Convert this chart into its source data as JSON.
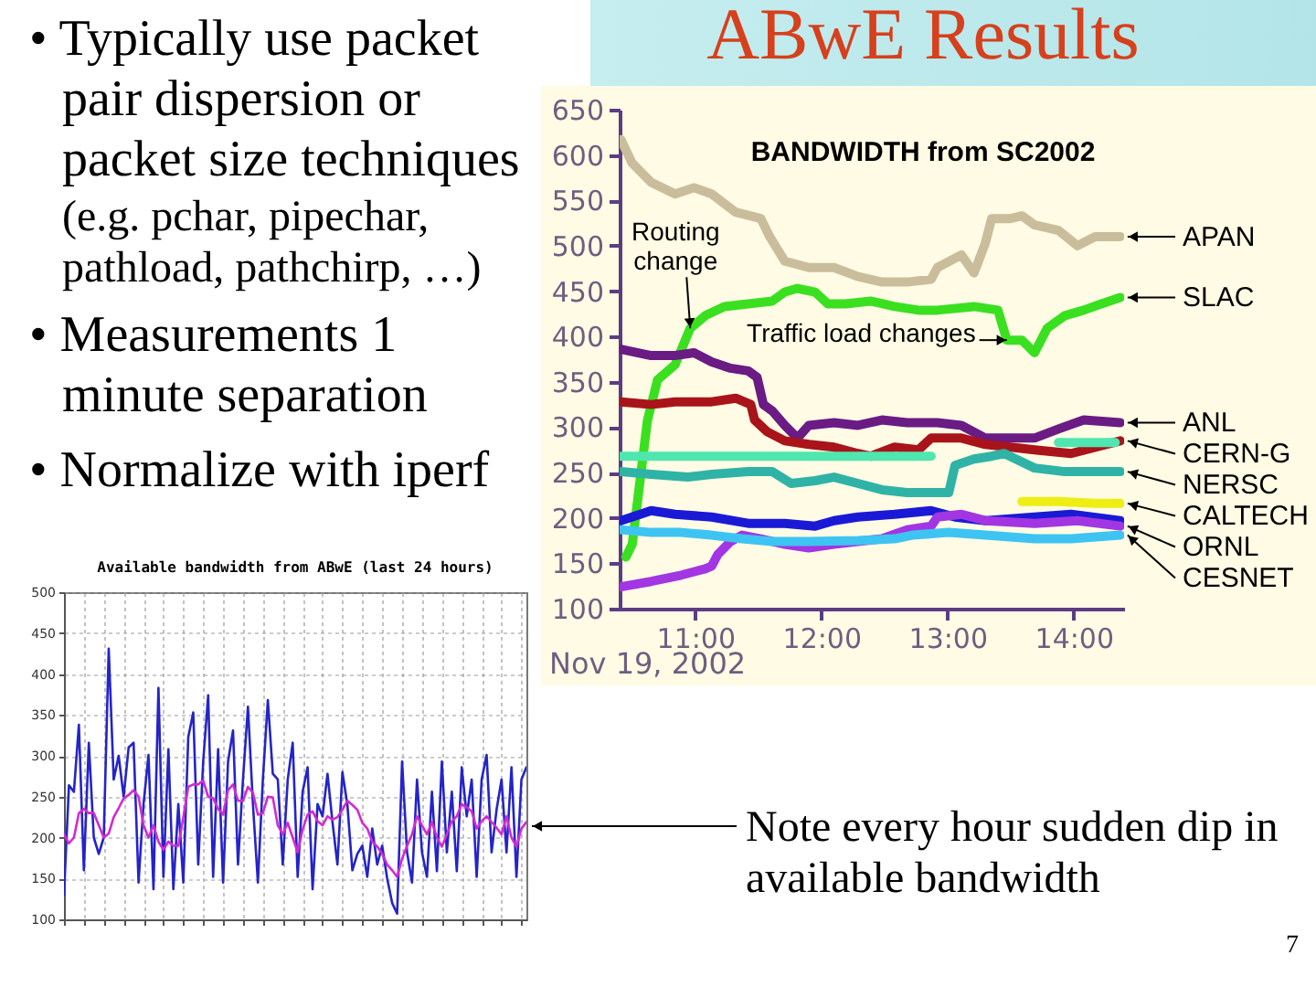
{
  "chart_data": [
    {
      "type": "other",
      "annotations": [
        "• Typically use packet pair dispersion or packet size techniques",
        "(e.g. pchar, pipechar, pathload, pathchirp, …)",
        "• Measurements 1 minute separation",
        "• Normalize with iperf"
      ]
    },
    {
      "type": "line",
      "title": "ABwE Results",
      "subtitle": "BANDWIDTH from SC2002",
      "xlabel": "Nov 19, 2002",
      "xlim": [
        10.4,
        14.4
      ],
      "xticks": [
        {
          "value": 11,
          "label": "11:00"
        },
        {
          "value": 12,
          "label": "12:00"
        },
        {
          "value": 13,
          "label": "13:00"
        },
        {
          "value": 14,
          "label": "14:00"
        }
      ],
      "ylim": [
        100,
        650
      ],
      "yticks": [
        100,
        150,
        200,
        250,
        300,
        350,
        400,
        450,
        500,
        550,
        600,
        650
      ],
      "annotations": [
        {
          "text": "Routing change",
          "x": 10.96,
          "y": 409
        },
        {
          "text": "Traffic load changes",
          "x": 13.47,
          "y": 396
        }
      ],
      "series": [
        {
          "name": "APAN",
          "color": "#c9bd9c",
          "x": [
            10.41,
            10.5,
            10.65,
            10.84,
            10.99,
            11.13,
            11.32,
            11.52,
            11.59,
            11.71,
            11.9,
            12.1,
            12.29,
            12.48,
            12.68,
            12.87,
            12.92,
            13.11,
            13.21,
            13.3,
            13.35,
            13.5,
            13.59,
            13.69,
            13.88,
            14.03,
            14.17,
            14.37
          ],
          "values": [
            617,
            591,
            570,
            557,
            564,
            557,
            537,
            530,
            510,
            483,
            476,
            476,
            466,
            460,
            460,
            463,
            476,
            490,
            470,
            503,
            530,
            530,
            533,
            523,
            517,
            500,
            510,
            510
          ]
        },
        {
          "name": "SLAC",
          "color": "#3ae020",
          "x": [
            10.45,
            10.5,
            10.62,
            10.7,
            10.84,
            10.96,
            11.08,
            11.23,
            11.42,
            11.61,
            11.71,
            11.81,
            11.95,
            12.05,
            12.19,
            12.39,
            12.58,
            12.77,
            12.92,
            13.21,
            13.4,
            13.47,
            13.59,
            13.69,
            13.79,
            13.93,
            14.08,
            14.22,
            14.37
          ],
          "values": [
            157,
            171,
            307,
            352,
            369,
            409,
            423,
            433,
            436,
            439,
            449,
            453,
            449,
            436,
            436,
            439,
            433,
            429,
            429,
            433,
            429,
            396,
            396,
            382,
            409,
            423,
            429,
            436,
            443
          ]
        },
        {
          "name": "ANL",
          "color": "#6a1b84",
          "x": [
            10.41,
            10.65,
            10.84,
            10.99,
            11.13,
            11.28,
            11.42,
            11.49,
            11.54,
            11.61,
            11.71,
            11.81,
            11.9,
            12.1,
            12.29,
            12.48,
            12.68,
            12.92,
            13.11,
            13.3,
            13.5,
            13.69,
            13.88,
            14.08,
            14.37
          ],
          "values": [
            386,
            379,
            379,
            382,
            372,
            365,
            362,
            355,
            325,
            318,
            302,
            288,
            302,
            305,
            302,
            308,
            305,
            305,
            302,
            288,
            288,
            288,
            298,
            308,
            305
          ]
        },
        {
          "name": "CERN-G",
          "color": "#a8141a",
          "x": [
            10.41,
            10.65,
            10.84,
            11.13,
            11.32,
            11.44,
            11.47,
            11.57,
            11.71,
            11.9,
            12.1,
            12.29,
            12.39,
            12.58,
            12.77,
            12.87,
            13.11,
            13.3,
            13.5,
            13.69,
            13.98,
            14.37
          ],
          "values": [
            328,
            325,
            328,
            328,
            332,
            325,
            308,
            295,
            285,
            281,
            278,
            271,
            268,
            278,
            275,
            288,
            288,
            281,
            278,
            275,
            271,
            285
          ]
        },
        {
          "color": "#4fe6b0",
          "x": [
            10.41,
            11.5,
            12.5,
            12.87
          ],
          "values": [
            268,
            268,
            268,
            268
          ]
        },
        {
          "color": "#4fe6b0",
          "x": [
            13.88,
            14.33
          ],
          "values": [
            283,
            283
          ]
        },
        {
          "name": "NERSC",
          "color": "#2fb3a6",
          "x": [
            10.41,
            10.65,
            10.94,
            11.13,
            11.42,
            11.61,
            11.76,
            11.95,
            12.1,
            12.29,
            12.48,
            12.68,
            12.92,
            13.01,
            13.06,
            13.21,
            13.35,
            13.45,
            13.69,
            13.93,
            14.37
          ],
          "values": [
            251,
            248,
            245,
            248,
            251,
            251,
            238,
            241,
            245,
            238,
            231,
            228,
            228,
            228,
            258,
            265,
            268,
            271,
            255,
            251,
            251
          ]
        },
        {
          "name": "CALTECH",
          "color": "#eeee14",
          "x": [
            13.59,
            13.88,
            14.17,
            14.37
          ],
          "values": [
            218,
            218,
            216,
            216
          ]
        },
        {
          "color": "#1a1ad6",
          "x": [
            10.41,
            10.65,
            10.84,
            11.13,
            11.42,
            11.71,
            11.95,
            12.1,
            12.29,
            12.58,
            12.87,
            13.06,
            13.3,
            13.69,
            13.98,
            14.37
          ],
          "values": [
            197,
            208,
            204,
            201,
            194,
            194,
            191,
            197,
            201,
            204,
            208,
            201,
            197,
            201,
            204,
            197
          ]
        },
        {
          "name": "ORNL",
          "color": "#a236e2",
          "x": [
            10.41,
            10.65,
            10.89,
            11.08,
            11.13,
            11.18,
            11.28,
            11.37,
            11.52,
            11.71,
            11.9,
            12.1,
            12.29,
            12.48,
            12.68,
            12.87,
            12.92,
            13.11,
            13.3,
            13.69,
            14.03,
            14.37
          ],
          "values": [
            124,
            130,
            137,
            144,
            147,
            160,
            174,
            181,
            177,
            171,
            167,
            171,
            174,
            177,
            187,
            191,
            201,
            204,
            197,
            194,
            197,
            191
          ]
        },
        {
          "name": "CESNET",
          "color": "#3ec4f2",
          "x": [
            10.41,
            10.65,
            10.89,
            11.13,
            11.37,
            11.61,
            11.9,
            12.29,
            12.58,
            12.72,
            13.01,
            13.3,
            13.69,
            13.98,
            14.37
          ],
          "values": [
            187,
            184,
            184,
            181,
            177,
            174,
            174,
            175,
            177,
            181,
            184,
            181,
            177,
            177,
            181
          ]
        }
      ]
    },
    {
      "type": "line",
      "title": "Available bandwidth from ABwE (last 24 hours)",
      "categories": [
        null,
        null,
        null,
        null,
        null,
        null,
        null,
        null,
        null,
        null,
        null,
        null,
        null,
        null,
        null,
        null,
        null,
        null,
        null,
        null,
        null,
        null,
        null,
        null,
        null,
        null,
        null,
        null,
        null,
        null,
        null,
        null,
        null,
        null,
        null,
        null,
        null,
        null,
        null,
        null,
        null,
        null,
        null,
        null,
        null,
        null,
        null,
        null,
        null,
        null,
        null,
        null,
        null,
        null,
        null,
        null,
        null,
        null,
        null,
        null,
        null,
        null,
        null,
        null,
        null,
        null,
        null,
        null,
        null,
        null,
        null,
        null,
        null,
        null,
        null,
        null,
        null,
        null,
        null,
        null,
        null,
        null,
        null,
        null,
        null,
        null,
        null,
        null,
        null,
        null,
        null,
        null,
        null,
        null
      ],
      "ylim": [
        100,
        500
      ],
      "yticks": [
        100,
        150,
        200,
        250,
        300,
        350,
        400,
        450,
        500
      ],
      "grid": true,
      "tick_labels": "y",
      "annotations": [
        "Note every hour sudden dip in available bandwidth",
        "7"
      ],
      "series": [
        {
          "color": "#2424c8",
          "values": [
            130,
            264,
            256,
            338,
            160,
            316,
            200,
            180,
            200,
            431,
            271,
            300,
            250,
            310,
            316,
            145,
            241,
            301,
            137,
            383,
            152,
            308,
            137,
            241,
            145,
            323,
            353,
            167,
            293,
            374,
            152,
            308,
            145,
            293,
            331,
            167,
            271,
            360,
            241,
            145,
            271,
            368,
            278,
            271,
            167,
            271,
            316,
            152,
            256,
            286,
            137,
            241,
            226,
            278,
            219,
            167,
            280,
            240,
            160,
            180,
            190,
            152,
            211,
            167,
            190,
            150,
            120,
            107,
            293,
            182,
            145,
            271,
            182,
            152,
            256,
            159,
            293,
            182,
            256,
            159,
            286,
            226,
            271,
            152,
            271,
            301,
            182,
            234,
            271,
            182,
            286,
            152,
            271,
            286
          ]
        },
        {
          "color": "#d22ad2",
          "values": [
            204,
            193,
            200,
            230,
            235,
            230,
            230,
            215,
            200,
            205,
            225,
            236,
            248,
            252,
            258,
            250,
            215,
            200,
            215,
            195,
            185,
            195,
            190,
            190,
            225,
            262,
            265,
            265,
            270,
            250,
            248,
            235,
            228,
            258,
            265,
            245,
            245,
            262,
            255,
            228,
            230,
            250,
            249,
            215,
            204,
            218,
            200,
            182,
            210,
            228,
            232,
            220,
            215,
            226,
            222,
            225,
            234,
            245,
            240,
            234,
            218,
            211,
            195,
            189,
            180,
            167,
            160,
            152,
            174,
            190,
            204,
            226,
            215,
            204,
            219,
            200,
            189,
            204,
            220,
            226,
            241,
            237,
            232,
            211,
            220,
            226,
            219,
            212,
            204,
            226,
            200,
            189,
            211,
            219
          ]
        }
      ]
    }
  ]
}
